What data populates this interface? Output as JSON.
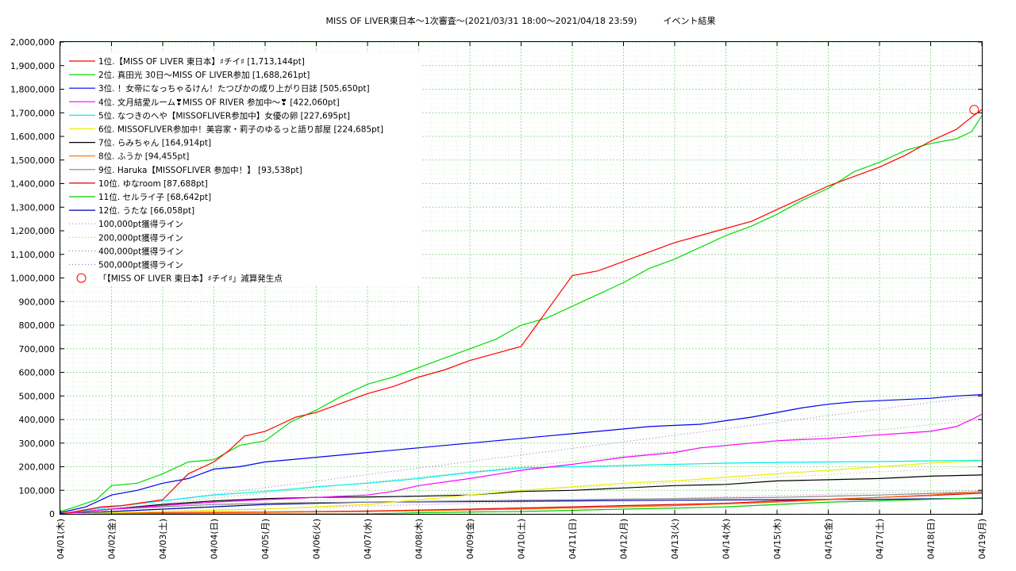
{
  "chart_data": {
    "type": "line",
    "title": "MISS OF LIVER東日本〜1次審査〜(2021/03/31 18:00〜2021/04/18 23:59)　　　イベント結果",
    "xlabel": "",
    "ylabel": "",
    "ylim": [
      0,
      2000000
    ],
    "xlim": [
      0,
      18
    ],
    "y_ticks": [
      "0",
      "100,000",
      "200,000",
      "300,000",
      "400,000",
      "500,000",
      "600,000",
      "700,000",
      "800,000",
      "900,000",
      "1,000,000",
      "1,100,000",
      "1,200,000",
      "1,300,000",
      "1,400,000",
      "1,500,000",
      "1,600,000",
      "1,700,000",
      "1,800,000",
      "1,900,000",
      "2,000,000"
    ],
    "x_ticks": [
      "04/01(木)",
      "04/02(金)",
      "04/03(土)",
      "04/04(日)",
      "04/05(月)",
      "04/06(火)",
      "04/07(水)",
      "04/08(木)",
      "04/09(金)",
      "04/10(土)",
      "04/11(日)",
      "04/12(月)",
      "04/13(火)",
      "04/14(水)",
      "04/15(木)",
      "04/16(金)",
      "04/17(土)",
      "04/18(日)",
      "04/19(月)"
    ],
    "grid": true,
    "legend_position": "top-left",
    "x_unit": "days since 04/01 00:00",
    "series": [
      {
        "name": "1位.【MISS OF LIVER 東日本】♯チイ♯ [1,713,144pt]",
        "color": "#ff0000",
        "style": "solid",
        "points": [
          [
            0,
            0
          ],
          [
            0.3,
            10000
          ],
          [
            0.8,
            30000
          ],
          [
            1.2,
            35000
          ],
          [
            2.0,
            60000
          ],
          [
            2.5,
            170000
          ],
          [
            3.0,
            220000
          ],
          [
            3.3,
            270000
          ],
          [
            3.6,
            330000
          ],
          [
            4.0,
            350000
          ],
          [
            4.3,
            380000
          ],
          [
            4.6,
            410000
          ],
          [
            5.0,
            430000
          ],
          [
            5.5,
            470000
          ],
          [
            6.0,
            510000
          ],
          [
            6.5,
            540000
          ],
          [
            7.0,
            580000
          ],
          [
            7.5,
            610000
          ],
          [
            8.0,
            650000
          ],
          [
            8.5,
            680000
          ],
          [
            9.0,
            710000
          ],
          [
            9.3,
            800000
          ],
          [
            9.7,
            920000
          ],
          [
            10.0,
            1010000
          ],
          [
            10.5,
            1030000
          ],
          [
            11.0,
            1070000
          ],
          [
            11.5,
            1110000
          ],
          [
            12.0,
            1150000
          ],
          [
            12.5,
            1180000
          ],
          [
            13.0,
            1210000
          ],
          [
            13.5,
            1240000
          ],
          [
            14.0,
            1290000
          ],
          [
            14.5,
            1340000
          ],
          [
            15.0,
            1390000
          ],
          [
            15.5,
            1430000
          ],
          [
            16.0,
            1470000
          ],
          [
            16.5,
            1520000
          ],
          [
            17.0,
            1580000
          ],
          [
            17.5,
            1630000
          ],
          [
            17.85,
            1690000
          ],
          [
            18.0,
            1713144
          ]
        ]
      },
      {
        "name": "2位. 真田光 30日〜MISS OF LIVER参加 [1,688,261pt]",
        "color": "#00dd00",
        "style": "solid",
        "points": [
          [
            0,
            10000
          ],
          [
            0.3,
            30000
          ],
          [
            0.7,
            60000
          ],
          [
            1.0,
            120000
          ],
          [
            1.5,
            130000
          ],
          [
            2.0,
            170000
          ],
          [
            2.5,
            220000
          ],
          [
            3.0,
            230000
          ],
          [
            3.5,
            290000
          ],
          [
            4.0,
            310000
          ],
          [
            4.5,
            390000
          ],
          [
            5.0,
            440000
          ],
          [
            5.5,
            500000
          ],
          [
            6.0,
            550000
          ],
          [
            6.5,
            580000
          ],
          [
            7.0,
            620000
          ],
          [
            7.5,
            660000
          ],
          [
            8.0,
            700000
          ],
          [
            8.5,
            740000
          ],
          [
            9.0,
            800000
          ],
          [
            9.5,
            830000
          ],
          [
            10.0,
            880000
          ],
          [
            10.5,
            930000
          ],
          [
            11.0,
            980000
          ],
          [
            11.5,
            1040000
          ],
          [
            12.0,
            1080000
          ],
          [
            12.5,
            1130000
          ],
          [
            13.0,
            1180000
          ],
          [
            13.5,
            1220000
          ],
          [
            14.0,
            1270000
          ],
          [
            14.5,
            1330000
          ],
          [
            15.0,
            1380000
          ],
          [
            15.5,
            1450000
          ],
          [
            16.0,
            1490000
          ],
          [
            16.5,
            1540000
          ],
          [
            17.0,
            1570000
          ],
          [
            17.5,
            1590000
          ],
          [
            17.8,
            1620000
          ],
          [
            18.0,
            1688261
          ]
        ]
      },
      {
        "name": "3位. ！女帝になっちゃるけん！たつぴかの成り上がり日誌 [505,650pt]",
        "color": "#0000ee",
        "style": "solid",
        "points": [
          [
            0,
            5000
          ],
          [
            0.5,
            30000
          ],
          [
            1.0,
            80000
          ],
          [
            1.5,
            100000
          ],
          [
            2.0,
            130000
          ],
          [
            2.5,
            150000
          ],
          [
            3.0,
            190000
          ],
          [
            3.5,
            200000
          ],
          [
            4.0,
            220000
          ],
          [
            4.5,
            230000
          ],
          [
            5.0,
            240000
          ],
          [
            5.5,
            250000
          ],
          [
            6.0,
            260000
          ],
          [
            6.5,
            270000
          ],
          [
            7.0,
            280000
          ],
          [
            7.5,
            290000
          ],
          [
            8.0,
            300000
          ],
          [
            8.5,
            310000
          ],
          [
            9.0,
            320000
          ],
          [
            9.5,
            330000
          ],
          [
            10.0,
            340000
          ],
          [
            10.5,
            350000
          ],
          [
            11.0,
            360000
          ],
          [
            11.5,
            370000
          ],
          [
            12.0,
            375000
          ],
          [
            12.5,
            380000
          ],
          [
            13.0,
            395000
          ],
          [
            13.5,
            410000
          ],
          [
            14.0,
            430000
          ],
          [
            14.5,
            450000
          ],
          [
            15.0,
            465000
          ],
          [
            15.5,
            475000
          ],
          [
            16.0,
            480000
          ],
          [
            16.5,
            485000
          ],
          [
            17.0,
            490000
          ],
          [
            17.5,
            500000
          ],
          [
            18.0,
            505650
          ]
        ]
      },
      {
        "name": "4位. 文月結愛ルーム❣MISS OF RIVER 参加中〜❣ [422,060pt]",
        "color": "#ff00ff",
        "style": "solid",
        "points": [
          [
            0,
            0
          ],
          [
            1.0,
            20000
          ],
          [
            2.0,
            35000
          ],
          [
            3.0,
            50000
          ],
          [
            4.0,
            60000
          ],
          [
            5.0,
            70000
          ],
          [
            6.0,
            80000
          ],
          [
            6.5,
            95000
          ],
          [
            7.0,
            120000
          ],
          [
            8.0,
            150000
          ],
          [
            9.0,
            185000
          ],
          [
            10.0,
            210000
          ],
          [
            11.0,
            240000
          ],
          [
            12.0,
            260000
          ],
          [
            12.5,
            280000
          ],
          [
            13.0,
            290000
          ],
          [
            14.0,
            310000
          ],
          [
            15.0,
            320000
          ],
          [
            16.0,
            335000
          ],
          [
            17.0,
            350000
          ],
          [
            17.5,
            370000
          ],
          [
            17.8,
            400000
          ],
          [
            18.0,
            422060
          ]
        ]
      },
      {
        "name": "5位. なつきのへや【MISSOFLIVER参加中】女優の卵 [227,695pt]",
        "color": "#00eeee",
        "style": "solid",
        "points": [
          [
            0,
            0
          ],
          [
            1.0,
            30000
          ],
          [
            2.0,
            55000
          ],
          [
            3.0,
            80000
          ],
          [
            4.0,
            95000
          ],
          [
            5.0,
            115000
          ],
          [
            6.0,
            130000
          ],
          [
            7.0,
            150000
          ],
          [
            8.0,
            175000
          ],
          [
            9.0,
            195000
          ],
          [
            10.0,
            200000
          ],
          [
            11.0,
            205000
          ],
          [
            12.0,
            210000
          ],
          [
            13.0,
            215000
          ],
          [
            14.0,
            218000
          ],
          [
            15.0,
            220000
          ],
          [
            16.0,
            222000
          ],
          [
            17.0,
            225000
          ],
          [
            18.0,
            227695
          ]
        ]
      },
      {
        "name": "6位. MISSOFLIVER参加中！美容家・莉子のゆるっと語り部屋 [224,685pt]",
        "color": "#eeee00",
        "style": "solid",
        "points": [
          [
            0,
            0
          ],
          [
            2.0,
            10000
          ],
          [
            4.0,
            20000
          ],
          [
            6.0,
            40000
          ],
          [
            7.0,
            60000
          ],
          [
            8.0,
            80000
          ],
          [
            9.0,
            100000
          ],
          [
            10.0,
            115000
          ],
          [
            11.0,
            130000
          ],
          [
            12.0,
            140000
          ],
          [
            13.0,
            155000
          ],
          [
            14.0,
            170000
          ],
          [
            15.0,
            185000
          ],
          [
            16.0,
            200000
          ],
          [
            17.0,
            215000
          ],
          [
            18.0,
            224685
          ]
        ]
      },
      {
        "name": "7位. らみちゃん [164,914pt]",
        "color": "#000000",
        "style": "solid",
        "points": [
          [
            0,
            0
          ],
          [
            1.0,
            20000
          ],
          [
            2.0,
            40000
          ],
          [
            3.0,
            55000
          ],
          [
            4.0,
            65000
          ],
          [
            5.0,
            70000
          ],
          [
            6.0,
            72000
          ],
          [
            7.0,
            75000
          ],
          [
            8.0,
            80000
          ],
          [
            9.0,
            95000
          ],
          [
            10.0,
            100000
          ],
          [
            11.0,
            110000
          ],
          [
            12.0,
            120000
          ],
          [
            13.0,
            125000
          ],
          [
            14.0,
            140000
          ],
          [
            15.0,
            145000
          ],
          [
            16.0,
            150000
          ],
          [
            17.0,
            160000
          ],
          [
            18.0,
            164914
          ]
        ]
      },
      {
        "name": "8位. ふうか [94,455pt]",
        "color": "#ff6600",
        "style": "solid",
        "points": [
          [
            0,
            0
          ],
          [
            3.0,
            5000
          ],
          [
            6.0,
            10000
          ],
          [
            9.0,
            20000
          ],
          [
            12.0,
            35000
          ],
          [
            14.0,
            50000
          ],
          [
            15.0,
            60000
          ],
          [
            16.0,
            70000
          ],
          [
            17.0,
            80000
          ],
          [
            18.0,
            94455
          ]
        ]
      },
      {
        "name": "9位. Haruka【MISSOFLIVER 参加中！】 [93,538pt]",
        "color": "#888888",
        "style": "solid",
        "points": [
          [
            0,
            0
          ],
          [
            1.0,
            20000
          ],
          [
            2.0,
            30000
          ],
          [
            3.0,
            40000
          ],
          [
            4.0,
            45000
          ],
          [
            5.0,
            48000
          ],
          [
            6.0,
            50000
          ],
          [
            8.0,
            55000
          ],
          [
            10.0,
            60000
          ],
          [
            12.0,
            65000
          ],
          [
            14.0,
            70000
          ],
          [
            16.0,
            80000
          ],
          [
            18.0,
            93538
          ]
        ]
      },
      {
        "name": "10位. ゆなroom [87,688pt]",
        "color": "#dd0000",
        "style": "solid",
        "points": [
          [
            0,
            0
          ],
          [
            2.0,
            5000
          ],
          [
            4.0,
            8000
          ],
          [
            6.0,
            12000
          ],
          [
            8.0,
            20000
          ],
          [
            10.0,
            30000
          ],
          [
            12.0,
            40000
          ],
          [
            13.0,
            45000
          ],
          [
            14.0,
            55000
          ],
          [
            15.0,
            62000
          ],
          [
            16.0,
            70000
          ],
          [
            17.0,
            78000
          ],
          [
            18.0,
            87688
          ]
        ]
      },
      {
        "name": "11位. セルライ子 [68,642pt]",
        "color": "#00cc00",
        "style": "solid",
        "points": [
          [
            0,
            0
          ],
          [
            6.0,
            0
          ],
          [
            7.0,
            5000
          ],
          [
            8.0,
            8000
          ],
          [
            9.0,
            10000
          ],
          [
            10.0,
            15000
          ],
          [
            11.0,
            20000
          ],
          [
            12.0,
            25000
          ],
          [
            13.0,
            30000
          ],
          [
            14.0,
            40000
          ],
          [
            15.0,
            50000
          ],
          [
            16.0,
            55000
          ],
          [
            17.0,
            62000
          ],
          [
            18.0,
            68642
          ]
        ]
      },
      {
        "name": "12位. うたな [66,058pt]",
        "color": "#0000aa",
        "style": "solid",
        "points": [
          [
            0,
            0
          ],
          [
            1.0,
            10000
          ],
          [
            2.0,
            20000
          ],
          [
            3.0,
            30000
          ],
          [
            4.0,
            40000
          ],
          [
            5.0,
            45000
          ],
          [
            6.0,
            50000
          ],
          [
            8.0,
            52000
          ],
          [
            10.0,
            55000
          ],
          [
            12.0,
            58000
          ],
          [
            14.0,
            60000
          ],
          [
            16.0,
            62000
          ],
          [
            18.0,
            66058
          ]
        ]
      },
      {
        "name": "100,000pt獲得ライン",
        "color": "#cc66cc",
        "style": "dotted",
        "points": [
          [
            0,
            0
          ],
          [
            18,
            100000
          ]
        ]
      },
      {
        "name": "200,000pt獲得ライン",
        "color": "#99cc66",
        "style": "dotted",
        "points": [
          [
            0,
            0
          ],
          [
            18,
            200000
          ]
        ]
      },
      {
        "name": "400,000pt獲得ライン",
        "color": "#66aa66",
        "style": "dotted",
        "points": [
          [
            0,
            0
          ],
          [
            18,
            400000
          ]
        ]
      },
      {
        "name": "500,000pt獲得ライン",
        "color": "#aa66cc",
        "style": "dotted",
        "points": [
          [
            0,
            0
          ],
          [
            18,
            500000
          ]
        ]
      }
    ],
    "markers": [
      {
        "name": "「【MISS OF LIVER 東日本】♯チイ♯」減算発生点",
        "color": "#ff0000",
        "shape": "circle",
        "x": 17.85,
        "y": 1713144
      }
    ]
  }
}
